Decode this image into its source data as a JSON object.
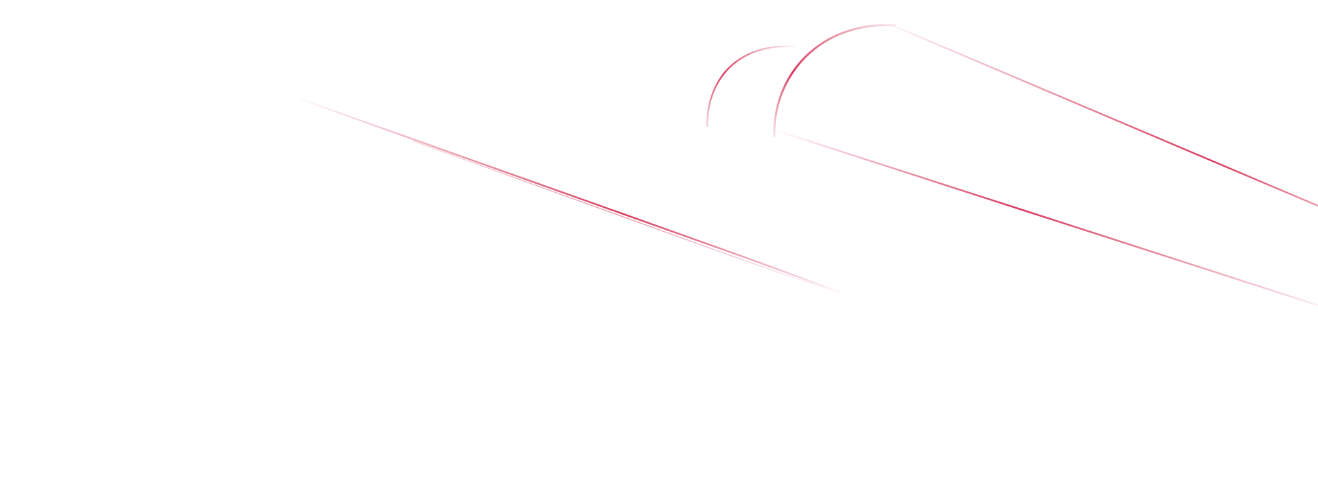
{
  "decoration": {
    "accent_color": "#d63a5c",
    "background_color": "#ffffff"
  }
}
